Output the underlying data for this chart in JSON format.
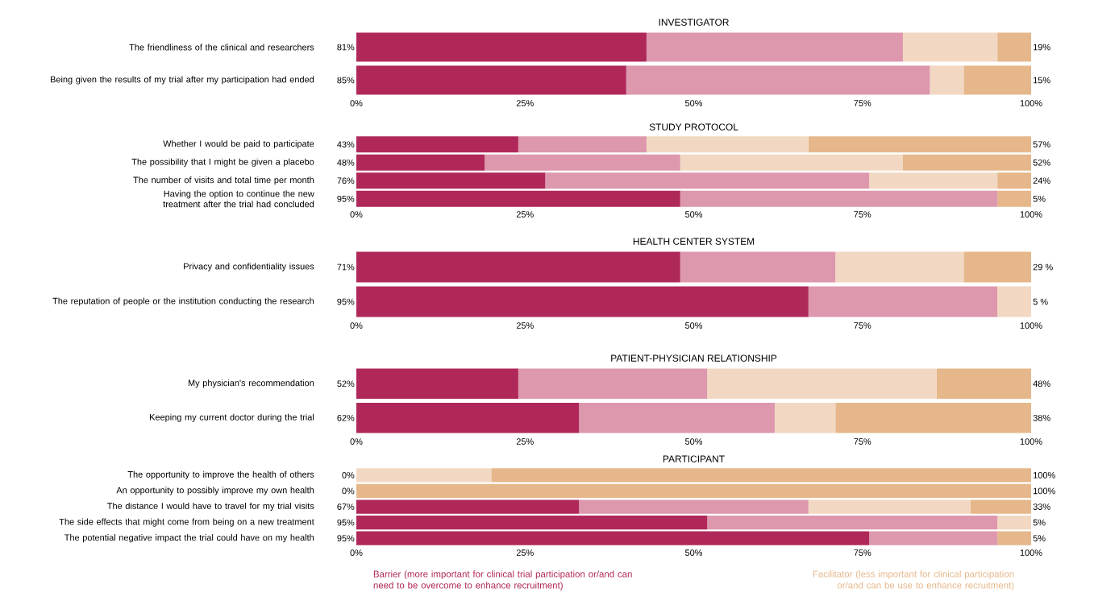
{
  "chart_data": [
    {
      "type": "bar",
      "orientation": "horizontal",
      "stacked": true,
      "title": "INVESTIGATOR",
      "categories": [
        "The friendliness of the clinical and researchers",
        "Being given the results of my trial after my participation had ended"
      ],
      "xlim": [
        0,
        100
      ],
      "xticks": [
        {
          "value": 0,
          "label": "0%"
        },
        {
          "value": 25,
          "label": "25%"
        },
        {
          "value": 50,
          "label": "50%"
        },
        {
          "value": 75,
          "label": "75%"
        },
        {
          "value": 100,
          "label": "100%"
        }
      ],
      "series": [
        {
          "color": "#b0285a",
          "values": [
            43,
            40
          ]
        },
        {
          "color": "#dd98ad",
          "values": [
            38,
            45
          ]
        },
        {
          "color": "#f2d8c2",
          "values": [
            14,
            5
          ]
        },
        {
          "color": "#e6b78a",
          "values": [
            5,
            10
          ]
        }
      ],
      "annotations": [
        "81%",
        "19%",
        "85%",
        "15%"
      ]
    },
    {
      "type": "bar",
      "orientation": "horizontal",
      "stacked": true,
      "title": "STUDY PROTOCOL",
      "categories": [
        "Whether I would be paid to participate",
        "The possibility that I might be given a placebo",
        "The number of visits and total time per month",
        "Having the option to continue the new treatment after the trial had concluded"
      ],
      "xlim": [
        0,
        100
      ],
      "xticks": [
        {
          "value": 0,
          "label": "0%"
        },
        {
          "value": 25,
          "label": "25%"
        },
        {
          "value": 50,
          "label": "50%"
        },
        {
          "value": 75,
          "label": "75%"
        },
        {
          "value": 100,
          "label": "100%"
        }
      ],
      "series": [
        {
          "color": "#b0285a",
          "values": [
            24,
            19,
            28,
            48
          ]
        },
        {
          "color": "#dd98ad",
          "values": [
            19,
            29,
            48,
            47
          ]
        },
        {
          "color": "#f2d8c2",
          "values": [
            24,
            33,
            19,
            0
          ]
        },
        {
          "color": "#e6b78a",
          "values": [
            33,
            19,
            5,
            5
          ]
        }
      ],
      "annotations": [
        "43%",
        "57%",
        "48%",
        "52%",
        "76%",
        "24%",
        "95%",
        "5%"
      ]
    },
    {
      "type": "bar",
      "orientation": "horizontal",
      "stacked": true,
      "title": "HEALTH CENTER SYSTEM",
      "categories": [
        "Privacy and confidentiality issues",
        "The reputation of people or the institution conducting the research"
      ],
      "xlim": [
        0,
        100
      ],
      "xticks": [
        {
          "value": 0,
          "label": "0%"
        },
        {
          "value": 25,
          "label": "25%"
        },
        {
          "value": 50,
          "label": "50%"
        },
        {
          "value": 75,
          "label": "75%"
        },
        {
          "value": 100,
          "label": "100%"
        }
      ],
      "series": [
        {
          "color": "#b0285a",
          "values": [
            48,
            67
          ]
        },
        {
          "color": "#dd98ad",
          "values": [
            23,
            28
          ]
        },
        {
          "color": "#f2d8c2",
          "values": [
            19,
            5
          ]
        },
        {
          "color": "#e6b78a",
          "values": [
            10,
            0
          ]
        }
      ],
      "annotations": [
        "71%",
        "29 %",
        "95%",
        "5 %"
      ]
    },
    {
      "type": "bar",
      "orientation": "horizontal",
      "stacked": true,
      "title": "PATIENT-PHYSICIAN RELATIONSHIP",
      "categories": [
        "My physician's recommendation",
        "Keeping my current doctor during the trial"
      ],
      "xlim": [
        0,
        100
      ],
      "xticks": [
        {
          "value": 0,
          "label": "0%"
        },
        {
          "value": 25,
          "label": "25%"
        },
        {
          "value": 50,
          "label": "50%"
        },
        {
          "value": 75,
          "label": "75%"
        },
        {
          "value": 100,
          "label": "100%"
        }
      ],
      "series": [
        {
          "color": "#b0285a",
          "values": [
            24,
            33
          ]
        },
        {
          "color": "#dd98ad",
          "values": [
            28,
            29
          ]
        },
        {
          "color": "#f2d8c2",
          "values": [
            34,
            9
          ]
        },
        {
          "color": "#e6b78a",
          "values": [
            14,
            29
          ]
        }
      ],
      "annotations": [
        "52%",
        "48%",
        "62%",
        "38%"
      ]
    },
    {
      "type": "bar",
      "orientation": "horizontal",
      "stacked": true,
      "title": "PARTICIPANT",
      "categories": [
        "The opportunity to improve the health of others",
        "An opportunity to possibly improve my own health",
        "The distance I would have to travel for my trial visits",
        "The side effects that might come from being on a new treatment",
        "The potential negative impact the trial could have on my health"
      ],
      "xlim": [
        0,
        100
      ],
      "xticks": [
        {
          "value": 0,
          "label": "0%"
        },
        {
          "value": 25,
          "label": "25%"
        },
        {
          "value": 50,
          "label": "50%"
        },
        {
          "value": 75,
          "label": "75%"
        },
        {
          "value": 100,
          "label": "100%"
        }
      ],
      "series": [
        {
          "color": "#b0285a",
          "values": [
            0,
            0,
            33,
            52,
            76
          ]
        },
        {
          "color": "#dd98ad",
          "values": [
            0,
            0,
            34,
            43,
            19
          ]
        },
        {
          "color": "#f2d8c2",
          "values": [
            20,
            0,
            24,
            5,
            0
          ]
        },
        {
          "color": "#e6b78a",
          "values": [
            80,
            100,
            9,
            0,
            5
          ]
        }
      ],
      "annotations": [
        "0%",
        "100%",
        "0%",
        "100%",
        "67%",
        "33%",
        "95%",
        "5%",
        "95%",
        "5%",
        "Barrier (more important for clinical trial participation or/and can need to be overcome to enhance recruitment)",
        "Facilitator (less important for clinical participation or/and can be use to enhance recruitment)"
      ]
    }
  ]
}
